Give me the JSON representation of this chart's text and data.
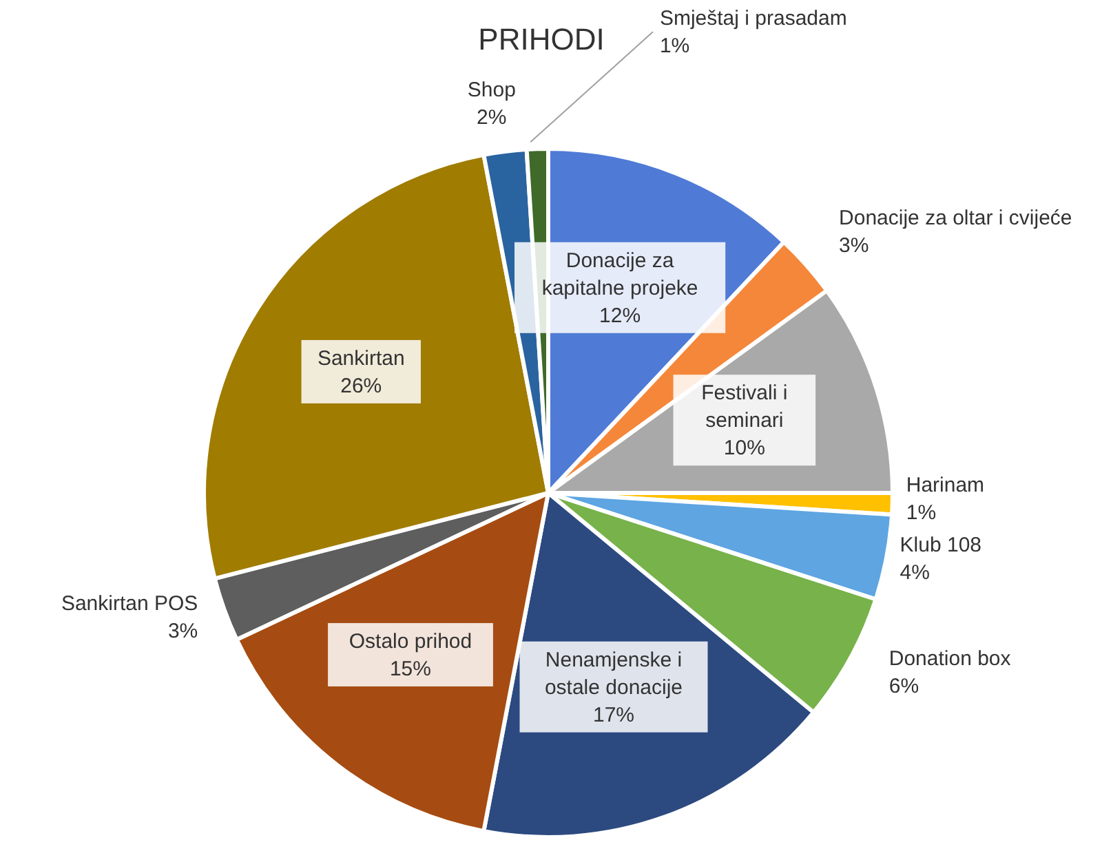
{
  "chart_data": {
    "type": "pie",
    "title": "PRIHODI",
    "categories": [
      "Donacije za kapitalne projeke",
      "Donacije za oltar i cvijeće",
      "Festivali i seminari",
      "Harinam",
      "Klub 108",
      "Donation box",
      "Nenamjenske i ostale donacije",
      "Ostalo prihod",
      "Sankirtan POS",
      "Sankirtan",
      "Shop",
      "Smještaj i prasadam"
    ],
    "values": [
      12,
      3,
      10,
      1,
      4,
      6,
      17,
      15,
      3,
      26,
      2,
      1
    ],
    "value_labels": [
      "12%",
      "3%",
      "10%",
      "1%",
      "4%",
      "6%",
      "17%",
      "15%",
      "3%",
      "26%",
      "2%",
      "1%"
    ],
    "colors": [
      "#4f7bd6",
      "#f5873a",
      "#a9a9a9",
      "#ffc000",
      "#5ea5e2",
      "#77b24a",
      "#2c4a80",
      "#a64c12",
      "#5e5e5e",
      "#a07c00",
      "#2a64a0",
      "#3f6a2a"
    ]
  }
}
